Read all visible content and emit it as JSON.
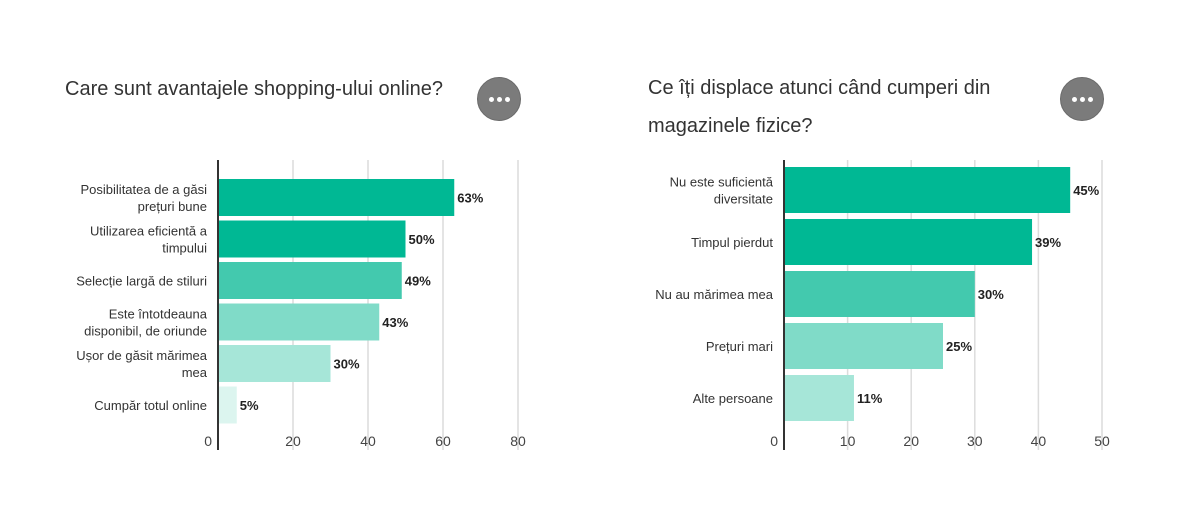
{
  "chart_data": [
    {
      "type": "bar",
      "orientation": "horizontal",
      "title": "Care sunt avantajele shopping-ului online?",
      "categories": [
        [
          "Posibilitatea de a găsi",
          "prețuri bune"
        ],
        [
          "Utilizarea eficientă a",
          "timpului"
        ],
        [
          "Selecție largă de stiluri"
        ],
        [
          "Este întotdeauna",
          "disponibil, de oriunde"
        ],
        [
          "Ușor de găsit mărimea",
          "mea"
        ],
        [
          "Cumpăr totul online"
        ]
      ],
      "values": [
        63,
        50,
        49,
        43,
        30,
        5
      ],
      "labels": [
        "63%",
        "50%",
        "49%",
        "43%",
        "30%",
        "5%"
      ],
      "colors": [
        "#00b894",
        "#00b894",
        "#43c9ae",
        "#80dbc8",
        "#a6e6d8",
        "#dcf5ef"
      ],
      "xticks": [
        "0",
        "20",
        "40",
        "60",
        "80"
      ],
      "xlim": [
        0,
        80
      ],
      "grid": true
    },
    {
      "type": "bar",
      "orientation": "horizontal",
      "title": [
        "Ce îți displace atunci când cumperi din",
        "magazinele fizice?"
      ],
      "categories": [
        [
          "Nu este suficientă",
          "diversitate"
        ],
        [
          "Timpul pierdut"
        ],
        [
          "Nu au mărimea mea"
        ],
        [
          "Prețuri mari"
        ],
        [
          "Alte persoane"
        ]
      ],
      "values": [
        45,
        39,
        30,
        25,
        11
      ],
      "labels": [
        "45%",
        "39%",
        "30%",
        "25%",
        "11%"
      ],
      "colors": [
        "#00b894",
        "#00b894",
        "#43c9ae",
        "#80dbc8",
        "#a6e6d8"
      ],
      "xticks": [
        "0",
        "10",
        "20",
        "30",
        "40",
        "50"
      ],
      "xlim": [
        0,
        50
      ],
      "grid": true
    }
  ]
}
